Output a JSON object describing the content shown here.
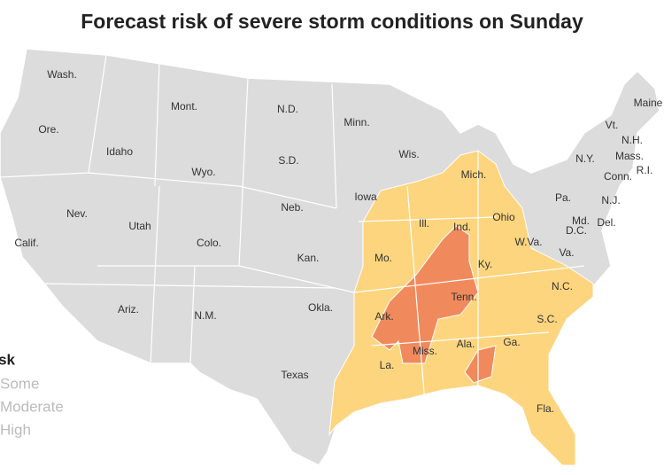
{
  "title": "Forecast risk of severe storm conditions on Sunday",
  "states": [
    "Wash.",
    "Ore.",
    "Calif.",
    "Idaho",
    "Nev.",
    "Mont.",
    "Wyo.",
    "Utah",
    "Ariz.",
    "Colo.",
    "N.M.",
    "N.D.",
    "S.D.",
    "Neb.",
    "Kan.",
    "Okla.",
    "Texas",
    "Minn.",
    "Iowa",
    "Mo.",
    "Ark.",
    "La.",
    "Wis.",
    "Ill.",
    "Miss.",
    "Mich.",
    "Ind.",
    "Ky.",
    "Tenn.",
    "Ala.",
    "Ohio",
    "Ga.",
    "Fla.",
    "W.Va.",
    "Va.",
    "N.C.",
    "S.C.",
    "Pa.",
    "N.Y.",
    "Md.",
    "D.C.",
    "Del.",
    "N.J.",
    "Conn.",
    "R.I.",
    "Mass.",
    "N.H.",
    "Vt.",
    "Maine"
  ],
  "legend": {
    "title": "Risk",
    "items": [
      {
        "label": "Some",
        "color": "#fdd57e"
      },
      {
        "label": "Moderate",
        "color": "#f08a5d"
      },
      {
        "label": "High",
        "color": "#c0392b"
      }
    ]
  }
}
